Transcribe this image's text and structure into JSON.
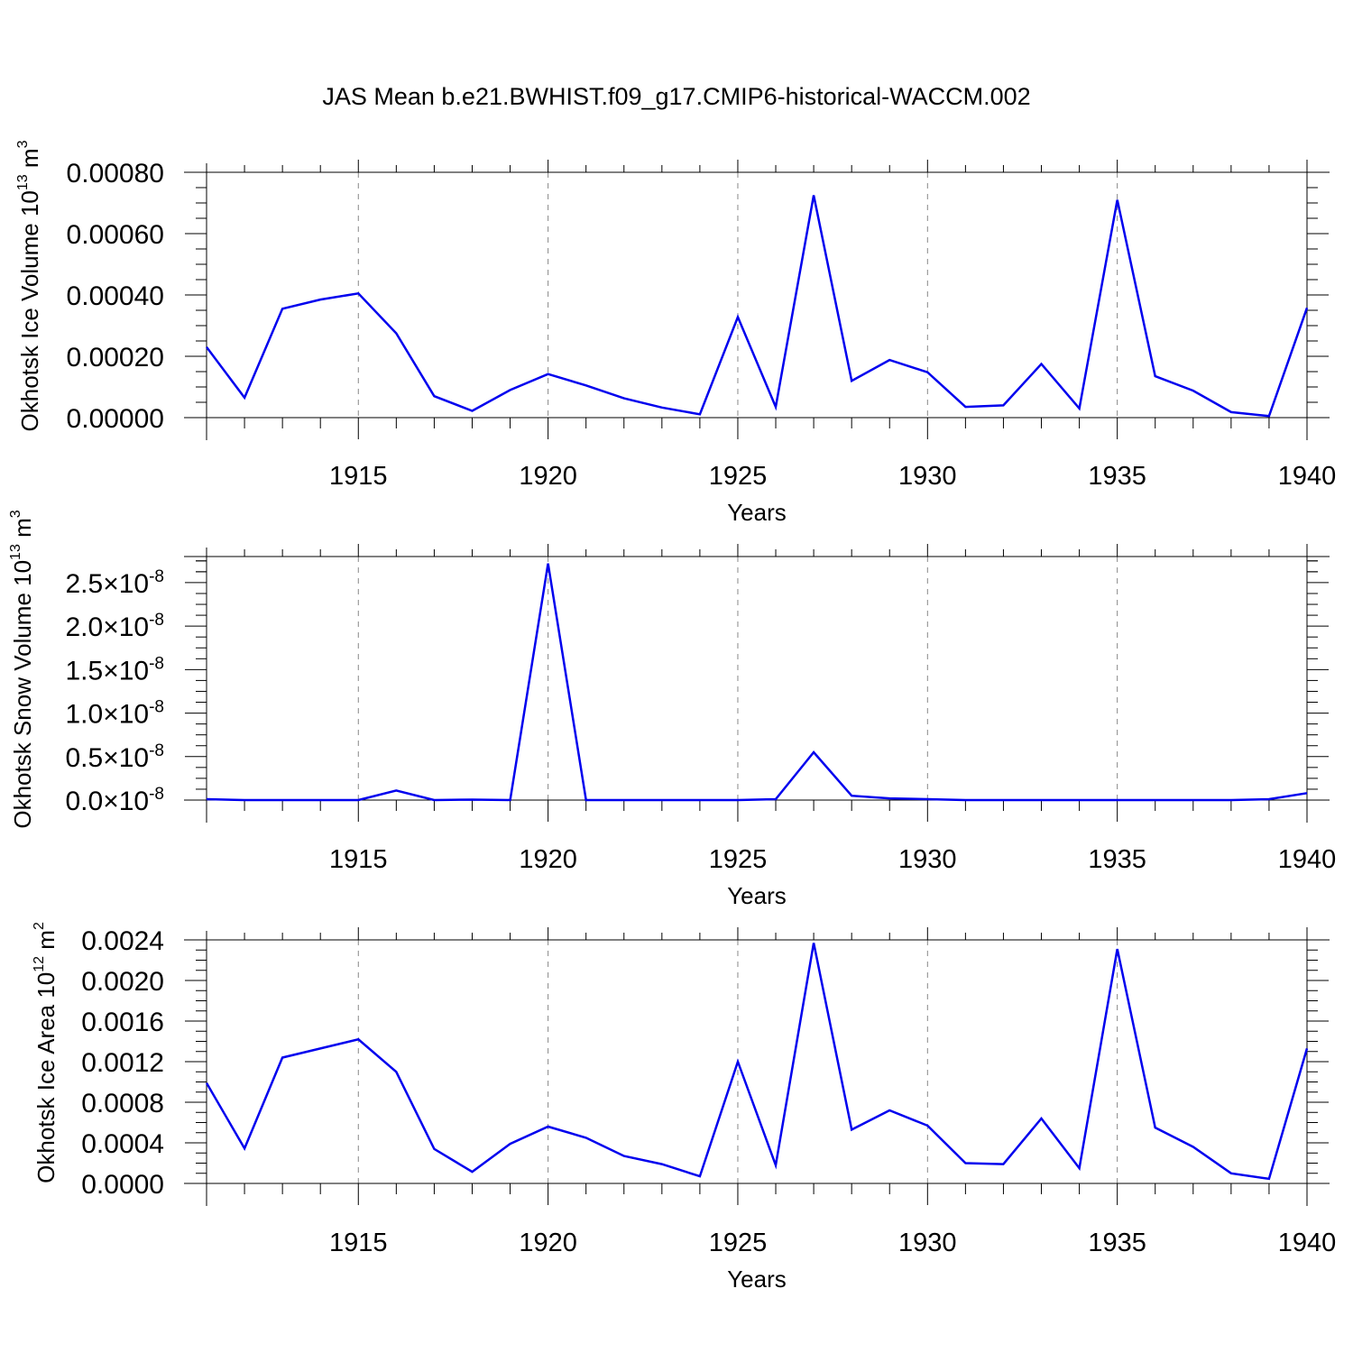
{
  "title": "JAS Mean b.e21.BWHIST.f09_g17.CMIP6-historical-WACCM.002",
  "colors": {
    "line": "#0000ee",
    "axis": "#000000",
    "grid": "#888888"
  },
  "chart_data": [
    {
      "type": "line",
      "xlabel": "Years",
      "ylabel_main": "Okhotsk Ice Volume 10",
      "ylabel_exp": "13",
      "ylabel_unit": " m",
      "ylabel_unit_exp": "3",
      "xlim": [
        1911,
        1940
      ],
      "ylim": [
        0,
        0.0008
      ],
      "yticks": [
        "0.00000",
        "0.00020",
        "0.00040",
        "0.00060",
        "0.00080"
      ],
      "ytick_values": [
        0,
        0.0002,
        0.0004,
        0.0006,
        0.0008
      ],
      "xticks": [
        1915,
        1920,
        1925,
        1930,
        1935,
        1940
      ],
      "grid": "vertical dashed at labeled years",
      "x": [
        1911,
        1912,
        1913,
        1914,
        1915,
        1916,
        1917,
        1918,
        1919,
        1920,
        1921,
        1922,
        1923,
        1924,
        1925,
        1926,
        1927,
        1928,
        1929,
        1930,
        1931,
        1932,
        1933,
        1934,
        1935,
        1936,
        1937,
        1938,
        1939,
        1940
      ],
      "values": [
        0.00023,
        6.5e-05,
        0.000355,
        0.000385,
        0.000405,
        0.000275,
        7e-05,
        2.2e-05,
        9e-05,
        0.000142,
        0.000105,
        6.3e-05,
        3.3e-05,
        1.1e-05,
        0.000328,
        3.5e-05,
        0.000725,
        0.00012,
        0.000188,
        0.000148,
        3.5e-05,
        4e-05,
        0.000175,
        3e-05,
        0.00071,
        0.000135,
        8.8e-05,
        1.8e-05,
        5e-06,
        0.000358
      ]
    },
    {
      "type": "line",
      "xlabel": "Years",
      "ylabel_main": "Okhotsk Snow Volume 10",
      "ylabel_exp": "13",
      "ylabel_unit": " m",
      "ylabel_unit_exp": "3",
      "xlim": [
        1911,
        1940
      ],
      "ylim": [
        0,
        2.8e-08
      ],
      "ytick_values": [
        0,
        5e-09,
        1e-08,
        1.5e-08,
        2e-08,
        2.5e-08
      ],
      "yticks_mantissa": [
        "0.0",
        "0.5",
        "1.0",
        "1.5",
        "2.0",
        "2.5"
      ],
      "ytick_times": "×",
      "ytick_base": "10",
      "ytick_exp": "-8",
      "xticks": [
        1915,
        1920,
        1925,
        1930,
        1935,
        1940
      ],
      "grid": "vertical dashed at labeled years",
      "x": [
        1911,
        1912,
        1913,
        1914,
        1915,
        1916,
        1917,
        1918,
        1919,
        1920,
        1921,
        1922,
        1923,
        1924,
        1925,
        1926,
        1927,
        1928,
        1929,
        1930,
        1931,
        1932,
        1933,
        1934,
        1935,
        1936,
        1937,
        1938,
        1939,
        1940
      ],
      "values": [
        1e-10,
        0.0,
        0.0,
        0.0,
        0.0,
        1.1e-09,
        0.0,
        5e-11,
        0.0,
        2.72e-08,
        0.0,
        0.0,
        0.0,
        0.0,
        0.0,
        1e-10,
        5.5e-09,
        5e-10,
        2e-10,
        1e-10,
        0.0,
        0.0,
        0.0,
        0.0,
        0.0,
        0.0,
        0.0,
        0.0,
        1e-10,
        8e-10
      ]
    },
    {
      "type": "line",
      "xlabel": "Years",
      "ylabel_main": "Okhotsk Ice Area 10",
      "ylabel_exp": "12",
      "ylabel_unit": " m",
      "ylabel_unit_exp": "2",
      "xlim": [
        1911,
        1940
      ],
      "ylim": [
        0,
        0.0024
      ],
      "yticks": [
        "0.0000",
        "0.0004",
        "0.0008",
        "0.0012",
        "0.0016",
        "0.0020",
        "0.0024"
      ],
      "ytick_values": [
        0,
        0.0004,
        0.0008,
        0.0012,
        0.0016,
        0.002,
        0.0024
      ],
      "xticks": [
        1915,
        1920,
        1925,
        1930,
        1935,
        1940
      ],
      "grid": "vertical dashed at labeled years",
      "x": [
        1911,
        1912,
        1913,
        1914,
        1915,
        1916,
        1917,
        1918,
        1919,
        1920,
        1921,
        1922,
        1923,
        1924,
        1925,
        1926,
        1927,
        1928,
        1929,
        1930,
        1931,
        1932,
        1933,
        1934,
        1935,
        1936,
        1937,
        1938,
        1939,
        1940
      ],
      "values": [
        0.00099,
        0.000345,
        0.00124,
        0.00133,
        0.00142,
        0.0011,
        0.00034,
        0.000115,
        0.00039,
        0.00056,
        0.00045,
        0.00027,
        0.00019,
        7e-05,
        0.0012,
        0.00018,
        0.00237,
        0.00053,
        0.00072,
        0.00057,
        0.0002,
        0.00019,
        0.00064,
        0.00015,
        0.00231,
        0.00055,
        0.00036,
        0.0001,
        4.5e-05,
        0.00133
      ]
    }
  ]
}
